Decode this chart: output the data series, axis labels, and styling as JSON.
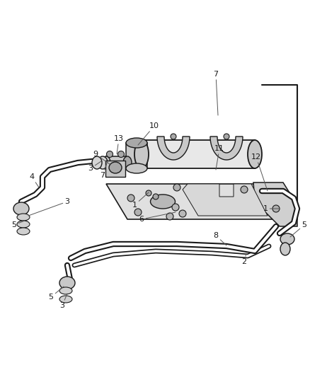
{
  "bg_color": "#ffffff",
  "line_color": "#1a1a1a",
  "fill_light": "#e8e8e8",
  "fill_mid": "#c8c8c8",
  "fill_dark": "#a8a8a8",
  "fig_width": 4.38,
  "fig_height": 5.33,
  "dpi": 100,
  "tube_lw": 4.5,
  "tube_inner_lw": 2.5,
  "pipe_lw": 3.5,
  "pipe_inner_lw": 1.5
}
